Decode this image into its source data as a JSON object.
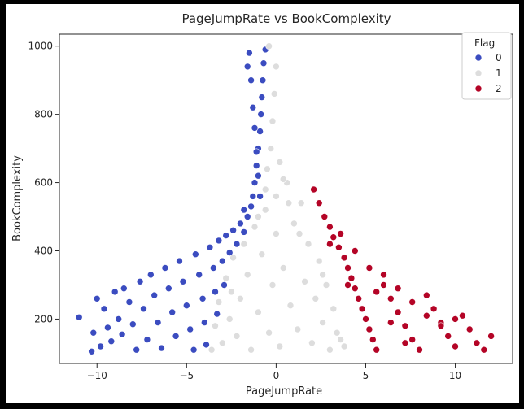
{
  "chart_data": {
    "type": "scatter",
    "title": "PageJumpRate vs BookComplexity",
    "xlabel": "PageJumpRate",
    "ylabel": "BookComplexity",
    "xlim": [
      -12.1,
      13.2
    ],
    "ylim": [
      70,
      1035
    ],
    "xticks": [
      -10,
      -5,
      0,
      5,
      10
    ],
    "yticks": [
      200,
      400,
      600,
      800,
      1000
    ],
    "grid": false,
    "legend": {
      "title": "Flag",
      "placement": "top-right",
      "entries": [
        {
          "label": "0",
          "color": "#3b4cc0"
        },
        {
          "label": "1",
          "color": "#dddddd"
        },
        {
          "label": "2",
          "color": "#b40426"
        }
      ]
    },
    "series": [
      {
        "name": "0",
        "color": "#3b4cc0",
        "points": [
          [
            -11.0,
            205
          ],
          [
            -10.3,
            105
          ],
          [
            -10.2,
            160
          ],
          [
            -10.0,
            260
          ],
          [
            -9.8,
            120
          ],
          [
            -9.6,
            230
          ],
          [
            -9.4,
            175
          ],
          [
            -9.2,
            135
          ],
          [
            -9.0,
            280
          ],
          [
            -8.8,
            200
          ],
          [
            -8.6,
            155
          ],
          [
            -8.5,
            290
          ],
          [
            -8.2,
            250
          ],
          [
            -8.0,
            185
          ],
          [
            -7.8,
            110
          ],
          [
            -7.6,
            310
          ],
          [
            -7.4,
            230
          ],
          [
            -7.2,
            140
          ],
          [
            -7.0,
            330
          ],
          [
            -6.8,
            270
          ],
          [
            -6.6,
            190
          ],
          [
            -6.4,
            115
          ],
          [
            -6.2,
            350
          ],
          [
            -6.0,
            290
          ],
          [
            -5.8,
            220
          ],
          [
            -5.6,
            150
          ],
          [
            -5.4,
            370
          ],
          [
            -5.2,
            310
          ],
          [
            -5.0,
            240
          ],
          [
            -4.8,
            170
          ],
          [
            -4.6,
            110
          ],
          [
            -4.5,
            390
          ],
          [
            -4.3,
            330
          ],
          [
            -4.1,
            260
          ],
          [
            -4.0,
            190
          ],
          [
            -3.9,
            125
          ],
          [
            -3.7,
            410
          ],
          [
            -3.5,
            350
          ],
          [
            -3.4,
            280
          ],
          [
            -3.3,
            215
          ],
          [
            -3.2,
            430
          ],
          [
            -3.0,
            370
          ],
          [
            -2.9,
            300
          ],
          [
            -2.8,
            445
          ],
          [
            -2.6,
            395
          ],
          [
            -2.4,
            460
          ],
          [
            -2.2,
            420
          ],
          [
            -2.0,
            480
          ],
          [
            -1.8,
            455
          ],
          [
            -1.6,
            500
          ],
          [
            -1.4,
            530
          ],
          [
            -1.3,
            560
          ],
          [
            -1.2,
            600
          ],
          [
            -1.1,
            650
          ],
          [
            -1.0,
            700
          ],
          [
            -0.9,
            750
          ],
          [
            -0.85,
            800
          ],
          [
            -0.8,
            850
          ],
          [
            -0.75,
            900
          ],
          [
            -0.7,
            950
          ],
          [
            -0.6,
            990
          ],
          [
            -1.5,
            980
          ],
          [
            -1.4,
            900
          ],
          [
            -1.3,
            820
          ],
          [
            -1.2,
            760
          ],
          [
            -1.1,
            690
          ],
          [
            -1.6,
            940
          ],
          [
            -1.0,
            620
          ],
          [
            -0.9,
            560
          ],
          [
            -1.8,
            520
          ]
        ]
      },
      {
        "name": "1",
        "color": "#dddddd",
        "points": [
          [
            -3.6,
            110
          ],
          [
            -3.4,
            180
          ],
          [
            -3.2,
            250
          ],
          [
            -3.0,
            130
          ],
          [
            -2.8,
            320
          ],
          [
            -2.6,
            200
          ],
          [
            -2.4,
            380
          ],
          [
            -2.2,
            150
          ],
          [
            -2.0,
            260
          ],
          [
            -1.8,
            420
          ],
          [
            -1.6,
            330
          ],
          [
            -1.4,
            110
          ],
          [
            -1.2,
            470
          ],
          [
            -1.0,
            220
          ],
          [
            -0.8,
            390
          ],
          [
            -0.6,
            520
          ],
          [
            -0.4,
            160
          ],
          [
            -0.2,
            300
          ],
          [
            0.0,
            560
          ],
          [
            0.0,
            450
          ],
          [
            0.2,
            120
          ],
          [
            0.4,
            350
          ],
          [
            0.6,
            600
          ],
          [
            0.8,
            240
          ],
          [
            1.0,
            480
          ],
          [
            1.2,
            170
          ],
          [
            1.4,
            540
          ],
          [
            1.6,
            310
          ],
          [
            1.8,
            420
          ],
          [
            2.0,
            130
          ],
          [
            2.2,
            260
          ],
          [
            2.4,
            370
          ],
          [
            2.6,
            190
          ],
          [
            2.8,
            300
          ],
          [
            3.0,
            110
          ],
          [
            3.2,
            230
          ],
          [
            3.4,
            160
          ],
          [
            3.6,
            140
          ],
          [
            3.8,
            120
          ],
          [
            -0.5,
            640
          ],
          [
            -0.3,
            700
          ],
          [
            -0.2,
            780
          ],
          [
            -0.1,
            860
          ],
          [
            0.0,
            940
          ],
          [
            -0.4,
            1000
          ],
          [
            0.2,
            660
          ],
          [
            0.4,
            610
          ],
          [
            -0.6,
            580
          ],
          [
            0.7,
            540
          ],
          [
            -1.0,
            500
          ],
          [
            1.3,
            450
          ],
          [
            -2.5,
            280
          ],
          [
            2.6,
            330
          ]
        ]
      },
      {
        "name": "2",
        "color": "#b40426",
        "points": [
          [
            2.1,
            580
          ],
          [
            2.4,
            540
          ],
          [
            2.7,
            500
          ],
          [
            3.0,
            470
          ],
          [
            3.2,
            440
          ],
          [
            3.5,
            410
          ],
          [
            3.8,
            380
          ],
          [
            4.0,
            350
          ],
          [
            4.2,
            320
          ],
          [
            4.4,
            290
          ],
          [
            4.6,
            260
          ],
          [
            4.8,
            230
          ],
          [
            5.0,
            200
          ],
          [
            5.2,
            170
          ],
          [
            5.4,
            140
          ],
          [
            5.6,
            110
          ],
          [
            6.0,
            300
          ],
          [
            6.4,
            260
          ],
          [
            6.8,
            220
          ],
          [
            7.2,
            180
          ],
          [
            7.6,
            140
          ],
          [
            8.0,
            110
          ],
          [
            8.4,
            270
          ],
          [
            8.8,
            230
          ],
          [
            9.2,
            190
          ],
          [
            9.6,
            150
          ],
          [
            10.0,
            120
          ],
          [
            10.4,
            210
          ],
          [
            10.8,
            170
          ],
          [
            11.2,
            130
          ],
          [
            11.6,
            110
          ],
          [
            12.0,
            150
          ],
          [
            3.6,
            450
          ],
          [
            4.4,
            400
          ],
          [
            5.2,
            350
          ],
          [
            6.0,
            330
          ],
          [
            6.8,
            290
          ],
          [
            7.6,
            250
          ],
          [
            8.4,
            210
          ],
          [
            9.2,
            180
          ],
          [
            10.0,
            200
          ],
          [
            5.6,
            280
          ],
          [
            6.4,
            190
          ],
          [
            7.2,
            130
          ],
          [
            3.0,
            420
          ],
          [
            4.0,
            300
          ]
        ]
      }
    ]
  }
}
